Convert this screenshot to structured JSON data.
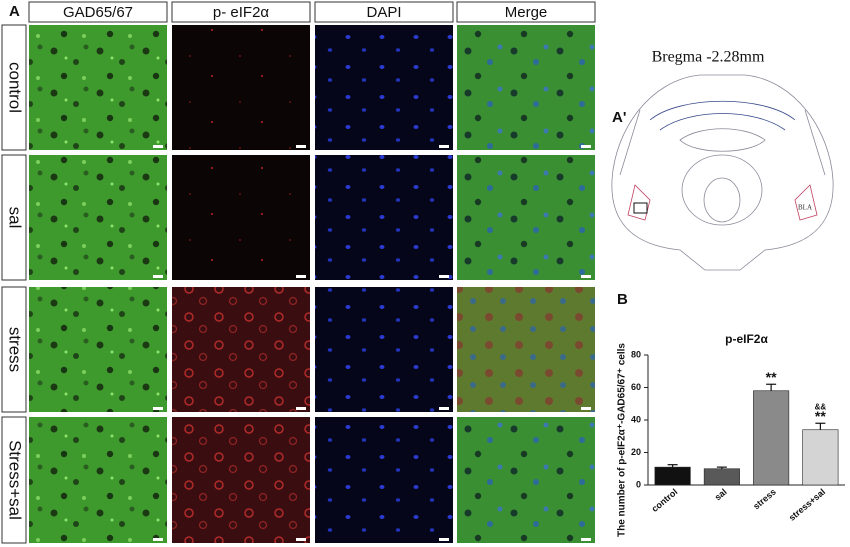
{
  "panel_labels": {
    "a": "A",
    "a_prime": "A'",
    "b": "B"
  },
  "columns": [
    "GAD65/67",
    "p- eIF2α",
    "DAPI",
    "Merge"
  ],
  "rows": [
    "control",
    "sal",
    "stress",
    "Stress+sal"
  ],
  "atlas": {
    "title": "Bregma -2.28mm",
    "region": "BLA"
  },
  "chart_data": {
    "type": "bar",
    "title": "p-eIF2α",
    "y_label": "The number of p-eIF2α⁺-GAD65/67⁺ cells",
    "categories": [
      "control",
      "sal",
      "stress",
      "stress+sal"
    ],
    "values": [
      11,
      10,
      58,
      34
    ],
    "errors": [
      1.5,
      1,
      4,
      4
    ],
    "colors": [
      "#111111",
      "#595959",
      "#8a8a8a",
      "#d4d4d4"
    ],
    "ylim": [
      0,
      80
    ],
    "yticks": [
      0,
      20,
      40,
      60,
      80
    ],
    "annotations": [
      {
        "text": "**",
        "category": "stress"
      },
      {
        "text": "&&",
        "category": "stress+sal"
      },
      {
        "text": "**",
        "category": "stress+sal"
      }
    ]
  }
}
